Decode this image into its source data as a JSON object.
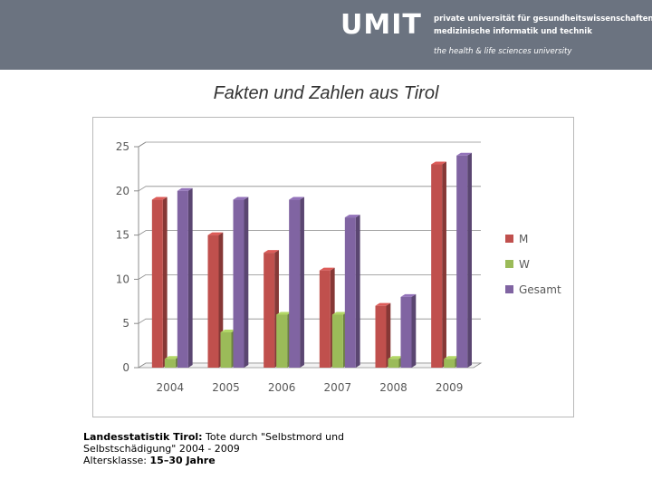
{
  "header": {
    "logo": "UMIT",
    "tagline_line1": "private universität für gesundheitswissenschaften,",
    "tagline_line2": "medizinische informatik und technik",
    "tagline_line3": "the health & life sciences university",
    "background": "#6b7380"
  },
  "slide": {
    "title": "Fakten und Zahlen aus Tirol"
  },
  "caption": {
    "source_label": "Landesstatistik Tirol:",
    "source_text": " Tote durch \"Selbstmord und Selbstschädigung\" 2004 - 2009",
    "age_label": "Altersklasse: ",
    "age_value": "15–30 Jahre"
  },
  "chart_data": {
    "type": "bar",
    "categories": [
      "2004",
      "2005",
      "2006",
      "2007",
      "2008",
      "2009"
    ],
    "series": [
      {
        "name": "M",
        "values": [
          19,
          15,
          13,
          11,
          7,
          23
        ],
        "color": "#c0504d"
      },
      {
        "name": "W",
        "values": [
          1,
          4,
          6,
          6,
          1,
          1
        ],
        "color": "#9bbb59"
      },
      {
        "name": "Gesamt",
        "values": [
          20,
          19,
          19,
          17,
          8,
          24
        ],
        "color": "#8064a2"
      }
    ],
    "yticks": [
      "0",
      "5",
      "10",
      "15",
      "20",
      "25"
    ],
    "ylim": [
      0,
      25
    ],
    "grid": true,
    "legend_position": "right",
    "title": "",
    "xlabel": "",
    "ylabel": ""
  }
}
